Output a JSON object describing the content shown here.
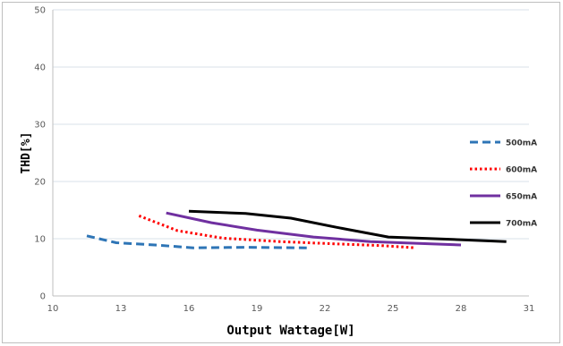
{
  "chart_data": {
    "type": "line",
    "xlabel": "Output Wattage[W]",
    "ylabel": "THD[%]",
    "xlim": [
      10,
      31
    ],
    "ylim": [
      0,
      50
    ],
    "xticks": [
      10,
      13,
      16,
      19,
      22,
      25,
      28,
      31
    ],
    "yticks": [
      0,
      10,
      20,
      30,
      40,
      50
    ],
    "grid": "horizontal",
    "legend_position": "right",
    "series": [
      {
        "name": "500mA",
        "color": "#2e75b6",
        "style": "dashed",
        "x": [
          11.5,
          12.8,
          14.5,
          16.2,
          18.5,
          21.2
        ],
        "y": [
          10.5,
          9.3,
          8.9,
          8.4,
          8.5,
          8.4
        ]
      },
      {
        "name": "600mA",
        "color": "#ff0000",
        "style": "dotted",
        "x": [
          13.8,
          15.5,
          17.5,
          20,
          22.5,
          24.5,
          26
        ],
        "y": [
          14.0,
          11.4,
          10.1,
          9.5,
          9.1,
          8.8,
          8.4
        ]
      },
      {
        "name": "650mA",
        "color": "#7030a0",
        "style": "solid",
        "x": [
          15,
          17,
          19,
          21.5,
          24,
          26,
          28
        ],
        "y": [
          14.5,
          12.8,
          11.5,
          10.3,
          9.5,
          9.2,
          8.9
        ]
      },
      {
        "name": "700mA",
        "color": "#000000",
        "style": "solid",
        "x": [
          16,
          18.5,
          20.5,
          22.5,
          24.8,
          27.5,
          30
        ],
        "y": [
          14.8,
          14.4,
          13.6,
          12.0,
          10.3,
          9.9,
          9.5
        ]
      }
    ]
  }
}
